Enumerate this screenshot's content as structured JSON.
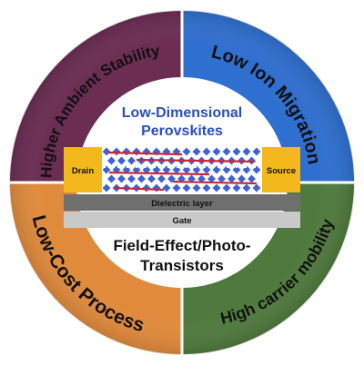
{
  "diagram": {
    "segments": [
      {
        "label": "Higher Ambient Stability",
        "color": "#6b2d52"
      },
      {
        "label": "Low Ion Migration",
        "color": "#2f6fcf"
      },
      {
        "label": "High carrier mobility",
        "color": "#4f7a3d"
      },
      {
        "label": "Low-Cost Process",
        "color": "#e08a3c"
      }
    ],
    "center": {
      "title_line1": "Low-Dimensional",
      "title_line2": "Perovskites",
      "drain": "Drain",
      "source": "Source",
      "dielectric": "Dielectric layer",
      "gate": "Gate",
      "device_line1": "Field-Effect/Photo-",
      "device_line2": "Transistors"
    },
    "colors": {
      "electrode": "#f2b81c",
      "lattice_blue": "#3f63d6",
      "lattice_red": "#c8283a",
      "dielectric_fill": "#6f6f6f",
      "gate_fill": "#c9c9c9"
    }
  }
}
